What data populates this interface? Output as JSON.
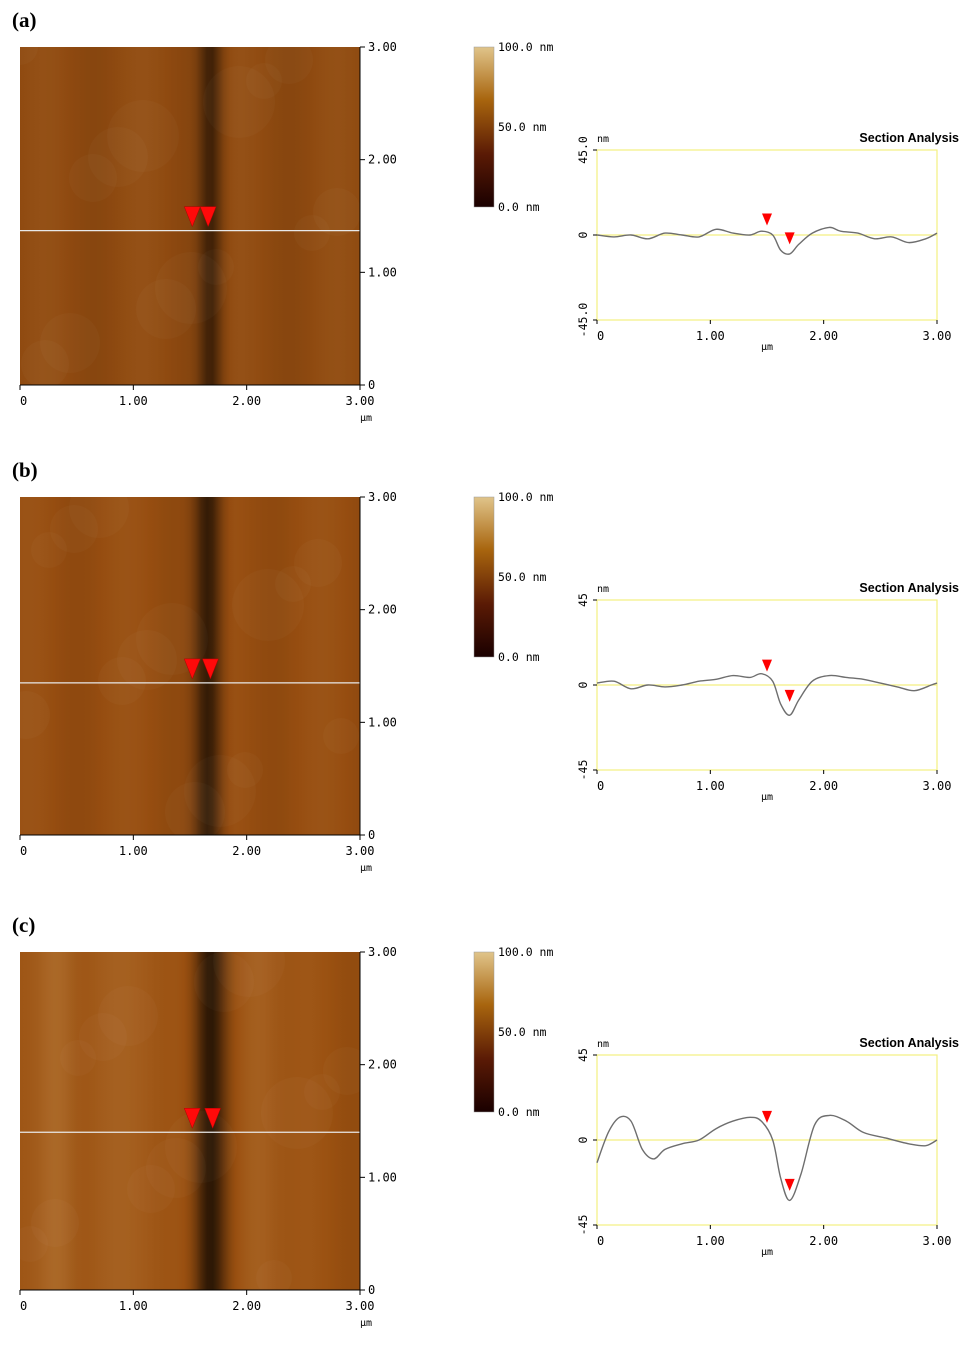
{
  "chart_data": [
    {
      "panel_label": "(a)",
      "type": "heatmap",
      "afm_image": {
        "x_ticks": [
          "0",
          "1.00",
          "2.00",
          "3.00"
        ],
        "y_ticks": [
          "0",
          "1.00",
          "2.00",
          "3.00"
        ],
        "x_unit": "µm",
        "range_um": [
          0,
          3
        ],
        "section_line_y_um": 1.37,
        "groove_center_um": 1.68,
        "groove_depth": 0.55,
        "groove_width_um": 0.1,
        "stripes": [],
        "marker_positions_um": [
          1.52,
          1.66
        ],
        "base_color": "#8f4a10"
      },
      "colorbar": {
        "labels": [
          "100.0  nm",
          "50.0  nm",
          "0.0  nm"
        ],
        "colors": [
          "#e0c48a",
          "#a8650e",
          "#5a1a05",
          "#1a0000"
        ]
      },
      "section": {
        "type": "line",
        "title": "Section Analysis",
        "ylabel": "nm",
        "xlabel": "µm",
        "y_ticks": [
          "45.0",
          "0",
          "-45.0"
        ],
        "x_ticks": [
          "0",
          "1.00",
          "2.00",
          "3.00"
        ],
        "xlim": [
          0,
          3.0
        ],
        "ylim": [
          -45,
          45
        ],
        "x": [
          0,
          0.15,
          0.3,
          0.45,
          0.6,
          0.75,
          0.9,
          1.05,
          1.2,
          1.35,
          1.45,
          1.55,
          1.62,
          1.7,
          1.78,
          1.9,
          2.05,
          2.15,
          2.3,
          2.45,
          2.6,
          2.75,
          2.9,
          3.0
        ],
        "y": [
          0,
          -1,
          0,
          -2,
          1,
          0,
          -1,
          3,
          1,
          0,
          2,
          0,
          -8,
          -10,
          -5,
          1,
          4,
          2,
          1,
          -2,
          -1,
          -4,
          -2,
          1
        ],
        "markers": [
          {
            "x": 1.5,
            "y": 4
          },
          {
            "x": 1.7,
            "y": -6
          }
        ],
        "line_color": "#6e6e6e",
        "frame_color": "#f3ef80",
        "marker_color": "#ff0000"
      }
    },
    {
      "panel_label": "(b)",
      "type": "heatmap",
      "afm_image": {
        "x_ticks": [
          "0",
          "1.00",
          "2.00",
          "3.00"
        ],
        "y_ticks": [
          "0",
          "1.00",
          "2.00",
          "3.00"
        ],
        "x_unit": "µm",
        "range_um": [
          0,
          3
        ],
        "section_line_y_um": 1.35,
        "groove_center_um": 1.66,
        "groove_depth": 0.68,
        "groove_width_um": 0.12,
        "stripes": [],
        "marker_positions_um": [
          1.52,
          1.68
        ],
        "base_color": "#964d10"
      },
      "colorbar": {
        "labels": [
          "100.0  nm",
          "50.0  nm",
          "0.0  nm"
        ],
        "colors": [
          "#e0c48a",
          "#a8650e",
          "#5a1a05",
          "#1a0000"
        ]
      },
      "section": {
        "type": "line",
        "title": "Section Analysis",
        "ylabel": "nm",
        "xlabel": "µm",
        "y_ticks": [
          "45",
          "0",
          "-45"
        ],
        "x_ticks": [
          "0",
          "1.00",
          "2.00",
          "3.00"
        ],
        "xlim": [
          0,
          3.0
        ],
        "ylim": [
          -45,
          45
        ],
        "x": [
          0,
          0.15,
          0.3,
          0.45,
          0.6,
          0.75,
          0.9,
          1.05,
          1.2,
          1.35,
          1.45,
          1.55,
          1.62,
          1.7,
          1.78,
          1.9,
          2.05,
          2.2,
          2.35,
          2.5,
          2.65,
          2.8,
          2.95,
          3.0
        ],
        "y": [
          1,
          2,
          -2,
          0,
          -1,
          0,
          2,
          3,
          5,
          4,
          6,
          2,
          -10,
          -16,
          -8,
          2,
          5,
          4,
          3,
          1,
          -1,
          -3,
          0,
          1
        ],
        "markers": [
          {
            "x": 1.5,
            "y": 6
          },
          {
            "x": 1.7,
            "y": -10
          }
        ],
        "line_color": "#6e6e6e",
        "frame_color": "#f3ef80",
        "marker_color": "#ff0000"
      }
    },
    {
      "panel_label": "(c)",
      "type": "heatmap",
      "afm_image": {
        "x_ticks": [
          "0",
          "1.00",
          "2.00",
          "3.00"
        ],
        "y_ticks": [
          "0",
          "1.00",
          "2.00",
          "3.00"
        ],
        "x_unit": "µm",
        "range_um": [
          0,
          3
        ],
        "section_line_y_um": 1.4,
        "groove_center_um": 1.68,
        "groove_depth": 0.78,
        "groove_width_um": 0.14,
        "stripes": [
          {
            "x_um": 0.32,
            "width_um": 0.18,
            "amount": 0.25
          },
          {
            "x_um": 1.05,
            "width_um": 0.4,
            "amount": 0.12
          },
          {
            "x_um": 2.1,
            "width_um": 0.18,
            "amount": 0.18
          }
        ],
        "marker_positions_um": [
          1.52,
          1.7
        ],
        "base_color": "#9a5010"
      },
      "colorbar": {
        "labels": [
          "100.0  nm",
          "50.0  nm",
          "0.0  nm"
        ],
        "colors": [
          "#e0c48a",
          "#a8650e",
          "#5a1a05",
          "#1a0000"
        ]
      },
      "section": {
        "type": "line",
        "title": "Section Analysis",
        "ylabel": "nm",
        "xlabel": "µm",
        "y_ticks": [
          "45",
          "0",
          "-45"
        ],
        "x_ticks": [
          "0",
          "1.00",
          "2.00",
          "3.00"
        ],
        "xlim": [
          0,
          3.0
        ],
        "ylim": [
          -45,
          45
        ],
        "x": [
          0,
          0.1,
          0.2,
          0.3,
          0.4,
          0.5,
          0.6,
          0.75,
          0.9,
          1.05,
          1.2,
          1.35,
          1.45,
          1.55,
          1.62,
          1.7,
          1.8,
          1.92,
          2.05,
          2.2,
          2.35,
          2.55,
          2.75,
          2.9,
          3.0
        ],
        "y": [
          -12,
          4,
          12,
          10,
          -5,
          -10,
          -5,
          -2,
          0,
          6,
          10,
          12,
          10,
          0,
          -20,
          -32,
          -18,
          8,
          13,
          10,
          4,
          1,
          -2,
          -3,
          0
        ],
        "markers": [
          {
            "x": 1.5,
            "y": 8
          },
          {
            "x": 1.7,
            "y": -28
          }
        ],
        "line_color": "#6e6e6e",
        "frame_color": "#f3ef80",
        "marker_color": "#ff0000"
      }
    }
  ]
}
